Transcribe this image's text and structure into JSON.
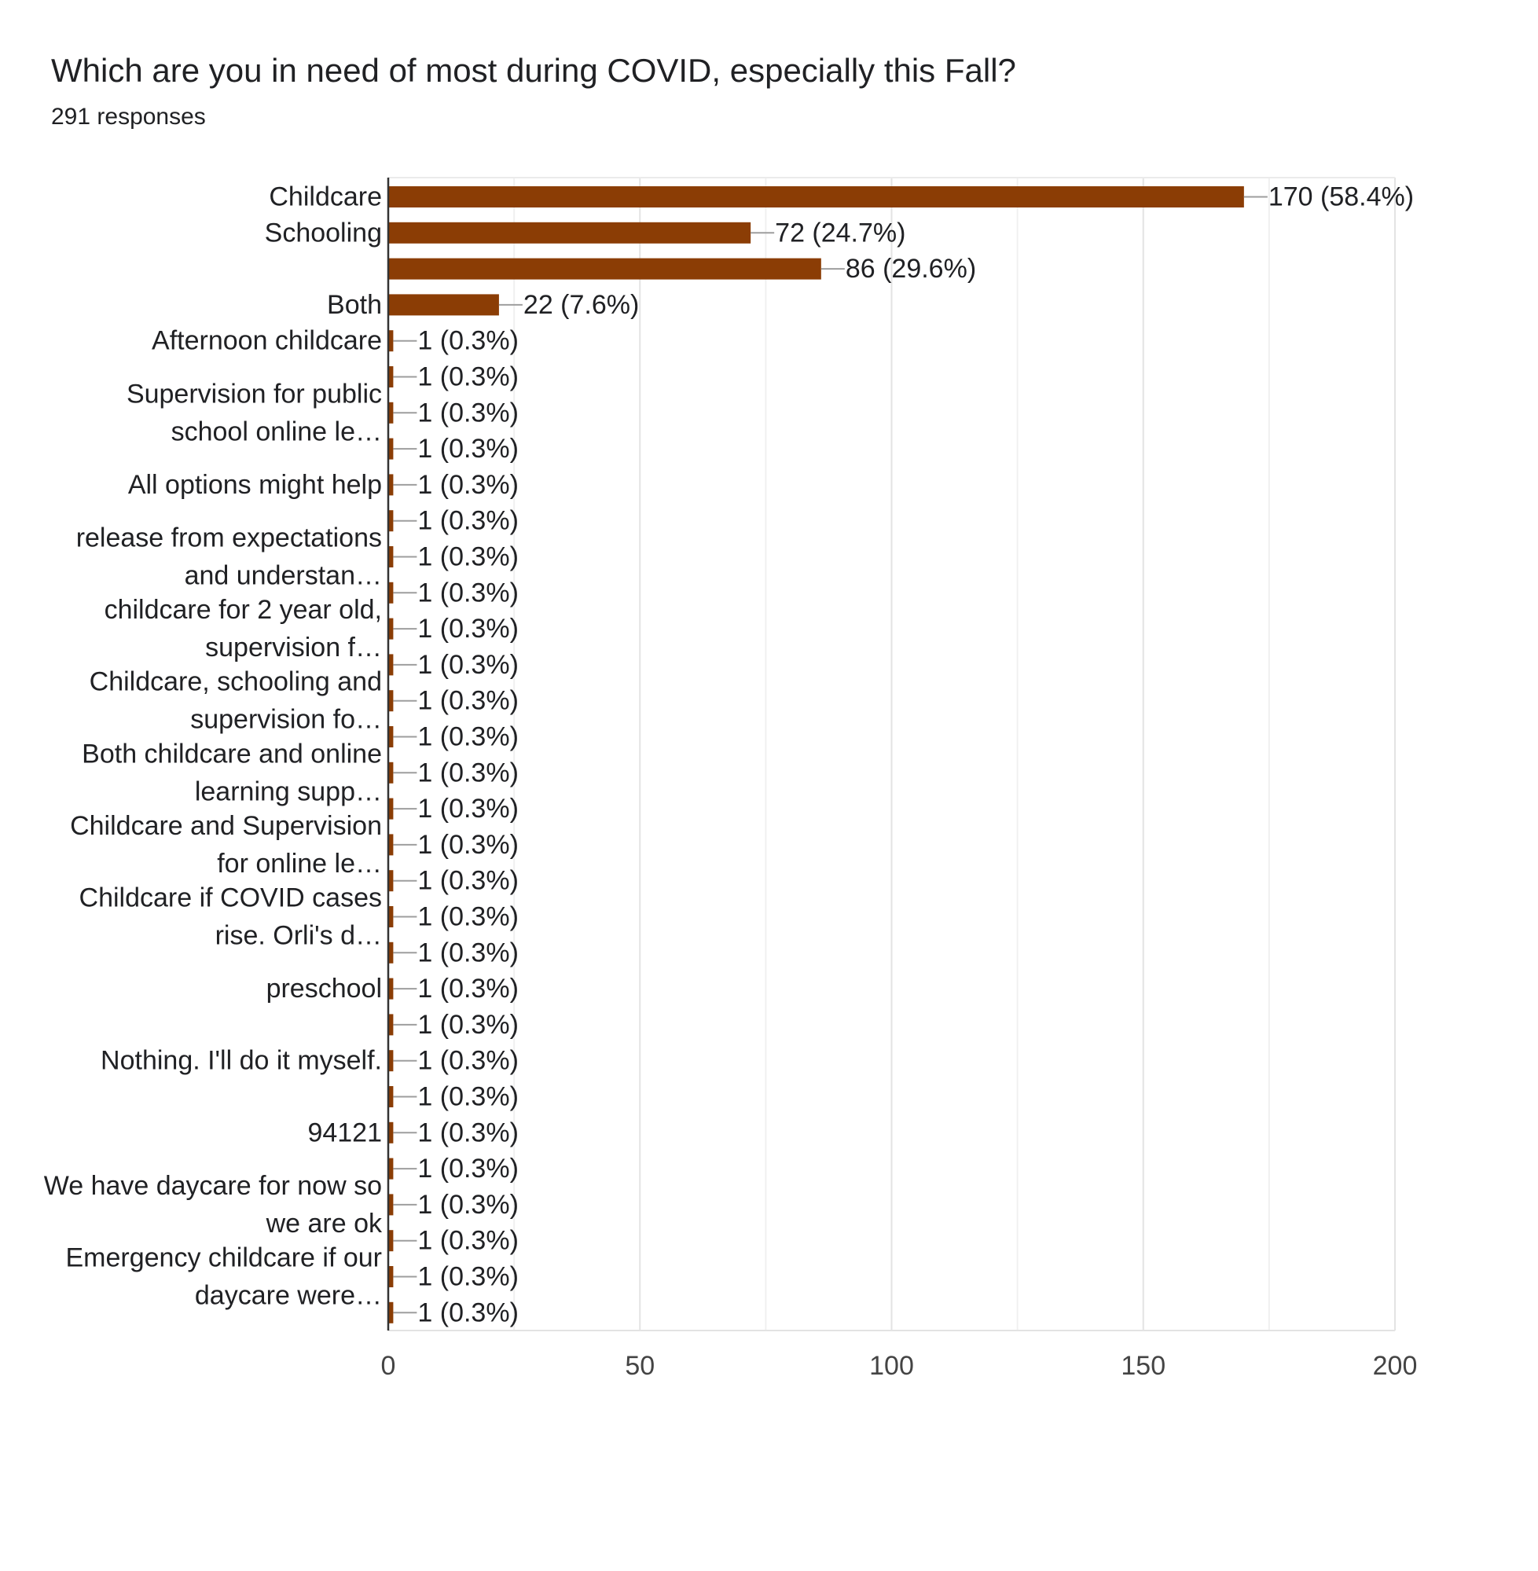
{
  "chart_data": {
    "type": "bar",
    "orientation": "horizontal",
    "title": "Which are you in need of most during COVID, especially this Fall?",
    "subtitle": "291 responses",
    "xlim": [
      0,
      200
    ],
    "x_ticks": [
      "0",
      "50",
      "100",
      "150",
      "200"
    ],
    "grid": true,
    "bar_color": "#8B3D05",
    "categories": [
      "Childcare",
      "Schooling",
      "",
      "Both",
      "Afternoon childcare",
      "",
      "Supervision for public school online le…",
      "",
      "All options might help",
      "",
      "release from expectations and understan…",
      "",
      "childcare for 2 year old, supervision f…",
      "",
      "Childcare, schooling and supervision fo…",
      "",
      "Both childcare and online learning supp…",
      "",
      "Childcare and Supervision for online le…",
      "",
      "Childcare if COVID cases rise. Orli's d…",
      "",
      "preschool",
      "",
      "Nothing. I'll do it myself.",
      "",
      "94121",
      "",
      "We have daycare for now so we are ok",
      "",
      "Emergency childcare if our daycare were…",
      ""
    ],
    "values": [
      170,
      72,
      86,
      22,
      1,
      1,
      1,
      1,
      1,
      1,
      1,
      1,
      1,
      1,
      1,
      1,
      1,
      1,
      1,
      1,
      1,
      1,
      1,
      1,
      1,
      1,
      1,
      1,
      1,
      1,
      1,
      1
    ],
    "value_labels": [
      "170 (58.4%)",
      "72 (24.7%)",
      "86 (29.6%)",
      "22 (7.6%)",
      "1 (0.3%)",
      "1 (0.3%)",
      "1 (0.3%)",
      "1 (0.3%)",
      "1 (0.3%)",
      "1 (0.3%)",
      "1 (0.3%)",
      "1 (0.3%)",
      "1 (0.3%)",
      "1 (0.3%)",
      "1 (0.3%)",
      "1 (0.3%)",
      "1 (0.3%)",
      "1 (0.3%)",
      "1 (0.3%)",
      "1 (0.3%)",
      "1 (0.3%)",
      "1 (0.3%)",
      "1 (0.3%)",
      "1 (0.3%)",
      "1 (0.3%)",
      "1 (0.3%)",
      "1 (0.3%)",
      "1 (0.3%)",
      "1 (0.3%)",
      "1 (0.3%)",
      "1 (0.3%)",
      "1 (0.3%)"
    ],
    "label_groups": [
      {
        "lines": [
          "Childcare"
        ],
        "bars": [
          0
        ]
      },
      {
        "lines": [
          "Schooling"
        ],
        "bars": [
          1
        ]
      },
      {
        "lines": [
          "Both"
        ],
        "bars": [
          3
        ]
      },
      {
        "lines": [
          "Afternoon childcare"
        ],
        "bars": [
          4
        ]
      },
      {
        "lines": [
          "Supervision for public",
          "school online le…"
        ],
        "bars": [
          5,
          7
        ]
      },
      {
        "lines": [
          "All options might help"
        ],
        "bars": [
          8
        ]
      },
      {
        "lines": [
          "release from expectations",
          "and understan…"
        ],
        "bars": [
          9,
          11
        ]
      },
      {
        "lines": [
          "childcare for 2 year old,",
          "supervision f…"
        ],
        "bars": [
          11,
          13
        ]
      },
      {
        "lines": [
          "Childcare, schooling and",
          "supervision fo…"
        ],
        "bars": [
          13,
          15
        ]
      },
      {
        "lines": [
          "Both childcare and online",
          "learning supp…"
        ],
        "bars": [
          15,
          17
        ]
      },
      {
        "lines": [
          "Childcare and Supervision",
          "for online le…"
        ],
        "bars": [
          17,
          19
        ]
      },
      {
        "lines": [
          "Childcare if COVID cases",
          "rise. Orli's d…"
        ],
        "bars": [
          19,
          21
        ]
      },
      {
        "lines": [
          "preschool"
        ],
        "bars": [
          22
        ]
      },
      {
        "lines": [
          "Nothing. I'll do it myself."
        ],
        "bars": [
          24
        ]
      },
      {
        "lines": [
          "94121"
        ],
        "bars": [
          26
        ]
      },
      {
        "lines": [
          "We have daycare for now so",
          "we are ok"
        ],
        "bars": [
          27,
          29
        ]
      },
      {
        "lines": [
          "Emergency childcare if our",
          "daycare were…"
        ],
        "bars": [
          29,
          31
        ]
      }
    ]
  }
}
